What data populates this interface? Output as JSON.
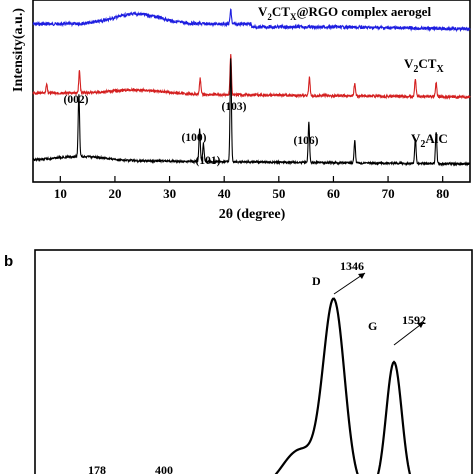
{
  "chart_data": [
    {
      "type": "line",
      "xlabel": "2θ (degree)",
      "ylabel": "Intensity(a.u.)",
      "xlim": [
        5,
        85
      ],
      "xticks": [
        10,
        20,
        30,
        40,
        50,
        60,
        70,
        80
      ],
      "series": [
        {
          "name": "V2CTX@RGO complex aerogel",
          "name_parts": [
            "V",
            "2",
            "CT",
            "X",
            "@RGO complex aerogel"
          ],
          "color": "#1e1ee0",
          "peaks": [
            [
              41.2,
              14
            ]
          ]
        },
        {
          "name": "V2CTX",
          "name_parts": [
            "V",
            "2",
            "CT",
            "X"
          ],
          "color": "#d42020",
          "peaks": [
            [
              7.5,
              9
            ],
            [
              13.5,
              22
            ],
            [
              35.6,
              16
            ],
            [
              41.2,
              40
            ],
            [
              55.6,
              18
            ],
            [
              63.9,
              12
            ],
            [
              75.0,
              18
            ],
            [
              78.8,
              14
            ]
          ]
        },
        {
          "name": "V2AlC",
          "name_parts": [
            "V",
            "2",
            "AlC"
          ],
          "color": "#000000",
          "peaks": [
            [
              13.4,
              63
            ],
            [
              35.5,
              32
            ],
            [
              36.2,
              18
            ],
            [
              41.2,
              103
            ],
            [
              55.5,
              40
            ],
            [
              63.9,
              22
            ],
            [
              75.0,
              25
            ],
            [
              78.8,
              32
            ]
          ]
        }
      ],
      "annotations": [
        {
          "text": "(002)",
          "x": 13.4
        },
        {
          "text": "(100)",
          "x": 35.5
        },
        {
          "text": "(101)",
          "x": 37.5
        },
        {
          "text": "(103)",
          "x": 41.2
        },
        {
          "text": "(106)",
          "x": 55.5
        }
      ]
    },
    {
      "type": "line",
      "panel": "b",
      "peaks": [
        {
          "label": "D",
          "value": "1346"
        },
        {
          "label": "G",
          "value": "1592"
        }
      ],
      "cropped_labels": [
        "178",
        "400"
      ]
    }
  ]
}
